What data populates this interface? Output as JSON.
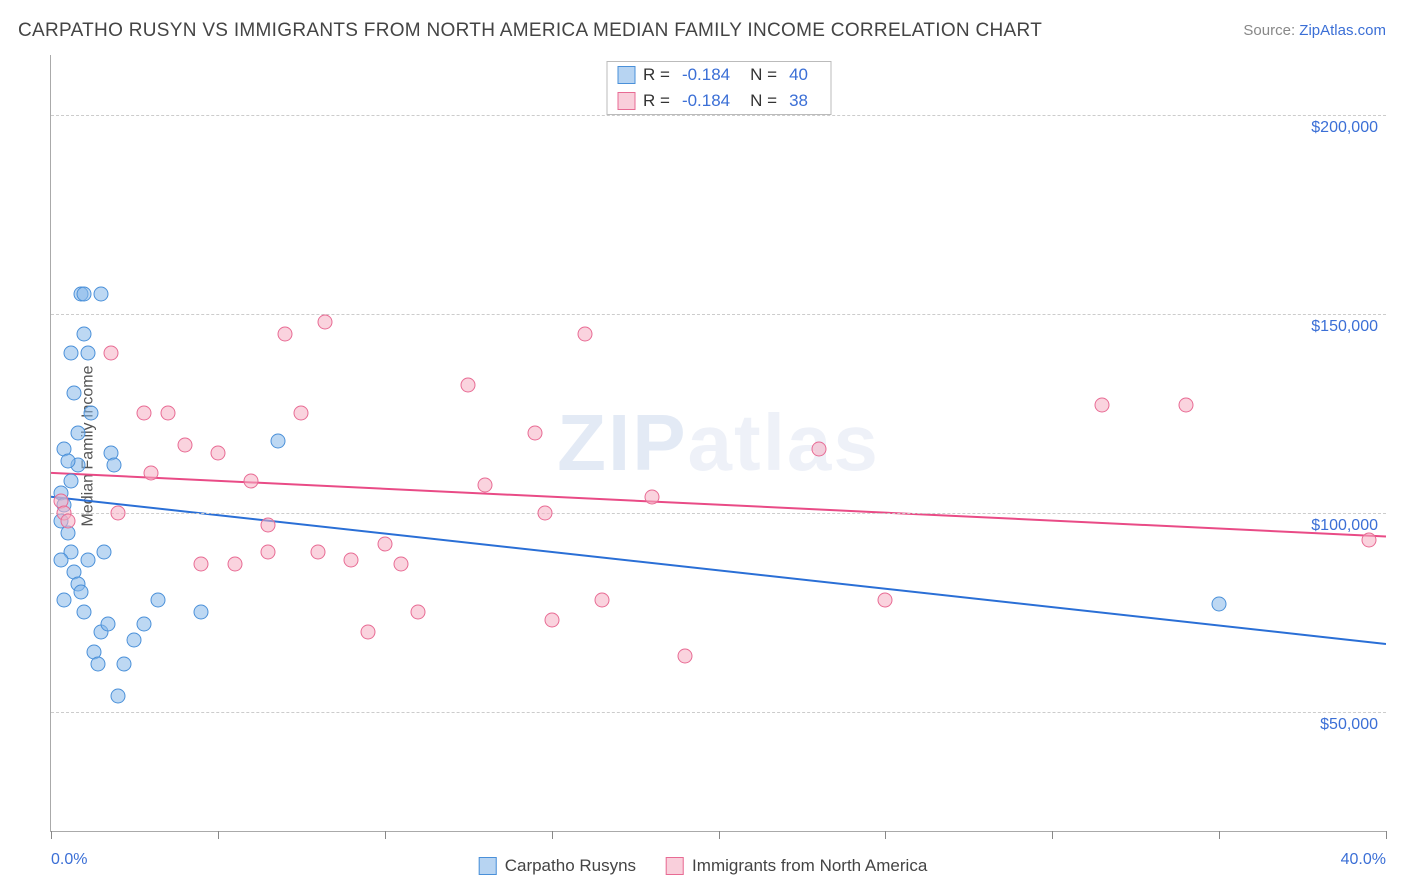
{
  "title": "CARPATHO RUSYN VS IMMIGRANTS FROM NORTH AMERICA MEDIAN FAMILY INCOME CORRELATION CHART",
  "source_prefix": "Source: ",
  "source_name": "ZipAtlas.com",
  "ylabel": "Median Family Income",
  "watermark": "ZIPatlas",
  "chart": {
    "type": "scatter",
    "background_color": "#ffffff",
    "grid_color": "#cccccc",
    "xlim": [
      0,
      40
    ],
    "ylim": [
      20000,
      215000
    ],
    "x_unit": "%",
    "y_unit": "$",
    "x_tick_label_left": "0.0%",
    "x_tick_label_right": "40.0%",
    "x_ticks": [
      0,
      5,
      10,
      15,
      20,
      25,
      30,
      35,
      40
    ],
    "y_grid": [
      {
        "value": 50000,
        "label": "$50,000"
      },
      {
        "value": 100000,
        "label": "$100,000"
      },
      {
        "value": 150000,
        "label": "$150,000"
      },
      {
        "value": 200000,
        "label": "$200,000"
      }
    ],
    "series": [
      {
        "name": "Carpatho Rusyns",
        "color_fill": "rgba(135,184,234,0.55)",
        "color_stroke": "#4a90d9",
        "trend_color": "#2a6fd6",
        "trend_width": 2,
        "R": "-0.184",
        "N": "40",
        "trend": {
          "x1": 0,
          "y1": 104000,
          "x2": 40,
          "y2": 67000
        },
        "points": [
          {
            "x": 0.3,
            "y": 105000
          },
          {
            "x": 0.4,
            "y": 102000
          },
          {
            "x": 0.5,
            "y": 95000
          },
          {
            "x": 0.6,
            "y": 140000
          },
          {
            "x": 0.7,
            "y": 130000
          },
          {
            "x": 0.8,
            "y": 120000
          },
          {
            "x": 0.8,
            "y": 112000
          },
          {
            "x": 0.9,
            "y": 155000
          },
          {
            "x": 1.0,
            "y": 155000
          },
          {
            "x": 1.1,
            "y": 140000
          },
          {
            "x": 0.6,
            "y": 90000
          },
          {
            "x": 0.7,
            "y": 85000
          },
          {
            "x": 0.8,
            "y": 82000
          },
          {
            "x": 0.9,
            "y": 80000
          },
          {
            "x": 1.0,
            "y": 75000
          },
          {
            "x": 1.1,
            "y": 88000
          },
          {
            "x": 1.2,
            "y": 125000
          },
          {
            "x": 1.3,
            "y": 65000
          },
          {
            "x": 1.4,
            "y": 62000
          },
          {
            "x": 1.5,
            "y": 70000
          },
          {
            "x": 1.6,
            "y": 90000
          },
          {
            "x": 1.7,
            "y": 72000
          },
          {
            "x": 1.8,
            "y": 115000
          },
          {
            "x": 1.9,
            "y": 112000
          },
          {
            "x": 2.0,
            "y": 54000
          },
          {
            "x": 2.2,
            "y": 62000
          },
          {
            "x": 2.5,
            "y": 68000
          },
          {
            "x": 2.8,
            "y": 72000
          },
          {
            "x": 3.2,
            "y": 78000
          },
          {
            "x": 4.5,
            "y": 75000
          },
          {
            "x": 6.8,
            "y": 118000
          },
          {
            "x": 0.4,
            "y": 116000
          },
          {
            "x": 0.5,
            "y": 113000
          },
          {
            "x": 0.6,
            "y": 108000
          },
          {
            "x": 0.3,
            "y": 98000
          },
          {
            "x": 1.0,
            "y": 145000
          },
          {
            "x": 0.3,
            "y": 88000
          },
          {
            "x": 0.4,
            "y": 78000
          },
          {
            "x": 35.0,
            "y": 77000
          },
          {
            "x": 1.5,
            "y": 155000
          }
        ]
      },
      {
        "name": "Immigrants from North America",
        "color_fill": "rgba(245,175,195,0.55)",
        "color_stroke": "#e86b94",
        "trend_color": "#e94b86",
        "trend_width": 2,
        "R": "-0.184",
        "N": "38",
        "trend": {
          "x1": 0,
          "y1": 110000,
          "x2": 40,
          "y2": 94000
        },
        "points": [
          {
            "x": 0.3,
            "y": 103000
          },
          {
            "x": 0.4,
            "y": 100000
          },
          {
            "x": 0.5,
            "y": 98000
          },
          {
            "x": 1.8,
            "y": 140000
          },
          {
            "x": 2.8,
            "y": 125000
          },
          {
            "x": 3.0,
            "y": 110000
          },
          {
            "x": 3.5,
            "y": 125000
          },
          {
            "x": 4.0,
            "y": 117000
          },
          {
            "x": 4.5,
            "y": 87000
          },
          {
            "x": 5.5,
            "y": 87000
          },
          {
            "x": 6.0,
            "y": 108000
          },
          {
            "x": 6.5,
            "y": 90000
          },
          {
            "x": 7.0,
            "y": 145000
          },
          {
            "x": 7.5,
            "y": 125000
          },
          {
            "x": 8.0,
            "y": 90000
          },
          {
            "x": 8.2,
            "y": 148000
          },
          {
            "x": 9.0,
            "y": 88000
          },
          {
            "x": 9.5,
            "y": 70000
          },
          {
            "x": 10.0,
            "y": 92000
          },
          {
            "x": 10.5,
            "y": 87000
          },
          {
            "x": 11.0,
            "y": 75000
          },
          {
            "x": 12.5,
            "y": 132000
          },
          {
            "x": 13.0,
            "y": 107000
          },
          {
            "x": 14.5,
            "y": 120000
          },
          {
            "x": 14.8,
            "y": 100000
          },
          {
            "x": 15.0,
            "y": 73000
          },
          {
            "x": 16.0,
            "y": 145000
          },
          {
            "x": 16.5,
            "y": 78000
          },
          {
            "x": 18.0,
            "y": 104000
          },
          {
            "x": 19.0,
            "y": 64000
          },
          {
            "x": 23.0,
            "y": 116000
          },
          {
            "x": 25.0,
            "y": 78000
          },
          {
            "x": 31.5,
            "y": 127000
          },
          {
            "x": 34.0,
            "y": 127000
          },
          {
            "x": 39.5,
            "y": 93000
          },
          {
            "x": 2.0,
            "y": 100000
          },
          {
            "x": 5.0,
            "y": 115000
          },
          {
            "x": 6.5,
            "y": 97000
          }
        ]
      }
    ]
  },
  "legend": {
    "items": [
      {
        "swatch": "blue",
        "label": "Carpatho Rusyns"
      },
      {
        "swatch": "pink",
        "label": "Immigrants from North America"
      }
    ]
  }
}
